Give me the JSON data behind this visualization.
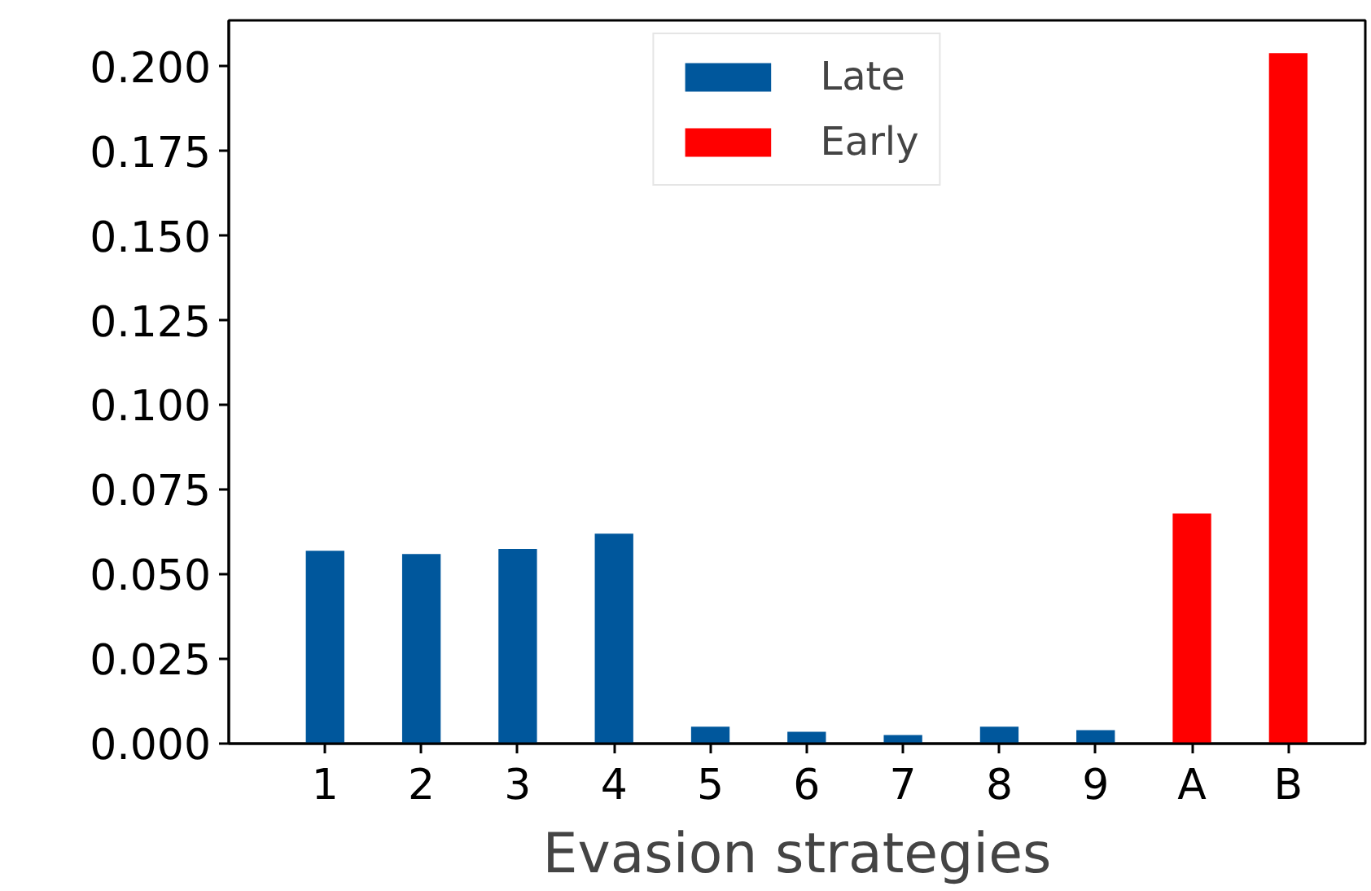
{
  "chart_data": {
    "type": "bar",
    "xlabel": "Evasion strategies",
    "categories": [
      "1",
      "2",
      "3",
      "4",
      "5",
      "6",
      "7",
      "8",
      "9",
      "A",
      "B"
    ],
    "series": [
      {
        "name": "Late",
        "color": "#00579c",
        "values": [
          0.057,
          0.056,
          0.0575,
          0.062,
          0.005,
          0.0035,
          0.0025,
          0.005,
          0.004,
          null,
          null
        ]
      },
      {
        "name": "Early",
        "color": "#ff0000",
        "values": [
          null,
          null,
          null,
          null,
          null,
          null,
          null,
          null,
          null,
          0.068,
          0.204
        ]
      }
    ],
    "ylim": [
      0,
      0.2137
    ],
    "yticks": [
      {
        "value": 0,
        "label": "0.000"
      },
      {
        "value": 0.025,
        "label": "0.025"
      },
      {
        "value": 0.05,
        "label": "0.050"
      },
      {
        "value": 0.075,
        "label": "0.075"
      },
      {
        "value": 0.1,
        "label": "0.100"
      },
      {
        "value": 0.125,
        "label": "0.125"
      },
      {
        "value": 0.15,
        "label": "0.150"
      },
      {
        "value": 0.175,
        "label": "0.175"
      },
      {
        "value": 0.2,
        "label": "0.200"
      }
    ],
    "grid": false,
    "legend": "top"
  }
}
